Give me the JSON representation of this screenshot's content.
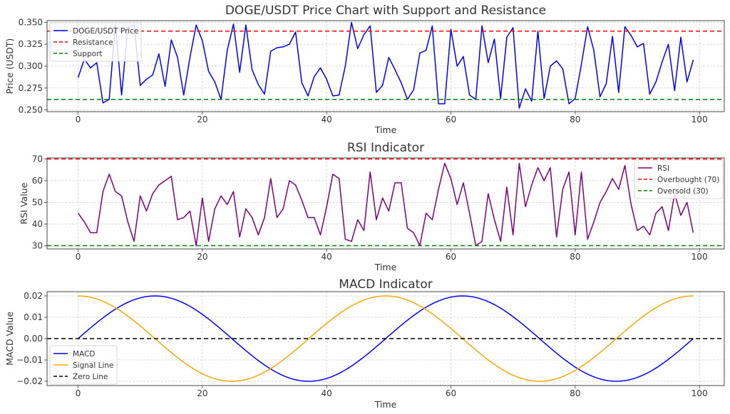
{
  "chart_data": [
    {
      "id": "price",
      "type": "line",
      "title": "DOGE/USDT Price Chart with Support and Resistance",
      "xlabel": "Time",
      "ylabel": "Price (USDT)",
      "xlim": [
        -5,
        104
      ],
      "ylim": [
        0.248,
        0.352
      ],
      "xticks": [
        0,
        20,
        40,
        60,
        80,
        100
      ],
      "yticks": [
        0.25,
        0.275,
        0.3,
        0.325,
        0.35
      ],
      "ytick_labels": [
        "0.250",
        "0.275",
        "0.300",
        "0.325",
        "0.350"
      ],
      "grid": true,
      "legend_position": "upper-left",
      "series": [
        {
          "name": "DOGE/USDT Price",
          "color": "#0000ff",
          "style": "solid",
          "x": [
            0,
            1,
            2,
            3,
            4,
            5,
            6,
            7,
            8,
            9,
            10,
            11,
            12,
            13,
            14,
            15,
            16,
            17,
            18,
            19,
            20,
            21,
            22,
            23,
            24,
            25,
            26,
            27,
            28,
            29,
            30,
            31,
            32,
            33,
            34,
            35,
            36,
            37,
            38,
            39,
            40,
            41,
            42,
            43,
            44,
            45,
            46,
            47,
            48,
            49,
            50,
            51,
            52,
            53,
            54,
            55,
            56,
            57,
            58,
            59,
            60,
            61,
            62,
            63,
            64,
            65,
            66,
            67,
            68,
            69,
            70,
            71,
            72,
            73,
            74,
            75,
            76,
            77,
            78,
            79,
            80,
            81,
            82,
            83,
            84,
            85,
            86,
            87,
            88,
            89,
            90,
            91,
            92,
            93,
            94,
            95,
            96,
            97,
            98,
            99
          ],
          "y": [
            0.287,
            0.308,
            0.298,
            0.304,
            0.258,
            0.262,
            0.348,
            0.267,
            0.345,
            0.347,
            0.278,
            0.285,
            0.29,
            0.314,
            0.277,
            0.33,
            0.31,
            0.267,
            0.31,
            0.347,
            0.329,
            0.294,
            0.282,
            0.262,
            0.318,
            0.348,
            0.293,
            0.347,
            0.296,
            0.279,
            0.268,
            0.317,
            0.321,
            0.322,
            0.325,
            0.339,
            0.281,
            0.266,
            0.288,
            0.298,
            0.285,
            0.266,
            0.267,
            0.3,
            0.35,
            0.32,
            0.336,
            0.346,
            0.27,
            0.278,
            0.31,
            0.296,
            0.281,
            0.262,
            0.273,
            0.315,
            0.318,
            0.346,
            0.257,
            0.257,
            0.342,
            0.3,
            0.311,
            0.267,
            0.262,
            0.346,
            0.304,
            0.331,
            0.263,
            0.333,
            0.344,
            0.252,
            0.274,
            0.26,
            0.34,
            0.263,
            0.3,
            0.306,
            0.297,
            0.257,
            0.263,
            0.302,
            0.345,
            0.318,
            0.265,
            0.28,
            0.334,
            0.27,
            0.345,
            0.335,
            0.322,
            0.326,
            0.268,
            0.282,
            0.305,
            0.325,
            0.272,
            0.333,
            0.282,
            0.307
          ]
        },
        {
          "name": "Resistance",
          "color": "#ff0000",
          "style": "dashed",
          "hline": 0.34
        },
        {
          "name": "Support",
          "color": "#008000",
          "style": "dashed",
          "hline": 0.262
        }
      ]
    },
    {
      "id": "rsi",
      "type": "line",
      "title": "RSI Indicator",
      "xlabel": "Time",
      "ylabel": "RSI Value",
      "xlim": [
        -5,
        104
      ],
      "ylim": [
        28.5,
        70.5
      ],
      "xticks": [
        0,
        20,
        40,
        60,
        80,
        100
      ],
      "yticks": [
        30,
        40,
        50,
        60,
        70
      ],
      "ytick_labels": [
        "30",
        "40",
        "50",
        "60",
        "70"
      ],
      "grid": true,
      "legend_position": "upper-right",
      "series": [
        {
          "name": "RSI",
          "color": "#800080",
          "style": "solid",
          "x": [
            0,
            1,
            2,
            3,
            4,
            5,
            6,
            7,
            8,
            9,
            10,
            11,
            12,
            13,
            14,
            15,
            16,
            17,
            18,
            19,
            20,
            21,
            22,
            23,
            24,
            25,
            26,
            27,
            28,
            29,
            30,
            31,
            32,
            33,
            34,
            35,
            36,
            37,
            38,
            39,
            40,
            41,
            42,
            43,
            44,
            45,
            46,
            47,
            48,
            49,
            50,
            51,
            52,
            53,
            54,
            55,
            56,
            57,
            58,
            59,
            60,
            61,
            62,
            63,
            64,
            65,
            66,
            67,
            68,
            69,
            70,
            71,
            72,
            73,
            74,
            75,
            76,
            77,
            78,
            79,
            80,
            81,
            82,
            83,
            84,
            85,
            86,
            87,
            88,
            89,
            90,
            91,
            92,
            93,
            94,
            95,
            96,
            97,
            98,
            99
          ],
          "y": [
            45,
            41,
            36,
            36,
            55,
            63,
            55,
            53,
            41,
            32,
            53,
            46,
            54,
            58,
            60,
            62,
            42,
            43,
            46,
            30,
            52,
            32,
            47,
            53,
            49,
            55,
            34,
            47,
            43,
            35,
            43,
            61,
            43,
            47,
            60,
            58,
            51,
            43,
            43,
            35,
            48,
            63,
            61,
            33,
            32,
            42,
            37,
            64,
            42,
            52,
            46,
            59,
            59,
            38,
            36,
            30,
            45,
            42,
            56,
            68,
            61,
            49,
            59,
            45,
            30,
            32,
            54,
            42,
            32,
            57,
            35,
            68,
            48,
            58,
            66,
            60,
            66,
            34,
            56,
            64,
            35,
            64,
            33,
            41,
            50,
            55,
            61,
            56,
            67,
            49,
            37,
            39,
            35,
            45,
            48,
            37,
            54,
            44,
            50,
            36
          ]
        },
        {
          "name": "Overbought (70)",
          "color": "#ff0000",
          "style": "dashed",
          "hline": 70
        },
        {
          "name": "Oversold (30)",
          "color": "#008000",
          "style": "dashed",
          "hline": 30
        }
      ]
    },
    {
      "id": "macd",
      "type": "line",
      "title": "MACD Indicator",
      "xlabel": "Time",
      "ylabel": "MACD Value",
      "xlim": [
        -5,
        104
      ],
      "ylim": [
        -0.022,
        0.022
      ],
      "xticks": [
        0,
        20,
        40,
        60,
        80,
        100
      ],
      "yticks": [
        -0.02,
        -0.01,
        0.0,
        0.01,
        0.02
      ],
      "ytick_labels": [
        "−0.02",
        "−0.01",
        "0.00",
        "0.01",
        "0.02"
      ],
      "grid": true,
      "legend_position": "lower-left",
      "series": [
        {
          "name": "MACD",
          "color": "#0000ff",
          "style": "solid",
          "func": "sin",
          "amplitude": 0.02,
          "x_start": 0,
          "x_end": 99,
          "period": 49.5,
          "phase": 0
        },
        {
          "name": "Signal Line",
          "color": "#ffa500",
          "style": "solid",
          "func": "cos",
          "amplitude": 0.02,
          "x_start": 0,
          "x_end": 99,
          "period": 49.5,
          "phase": 0
        },
        {
          "name": "Zero Line",
          "color": "#000000",
          "style": "dashed",
          "hline": 0
        }
      ]
    }
  ]
}
